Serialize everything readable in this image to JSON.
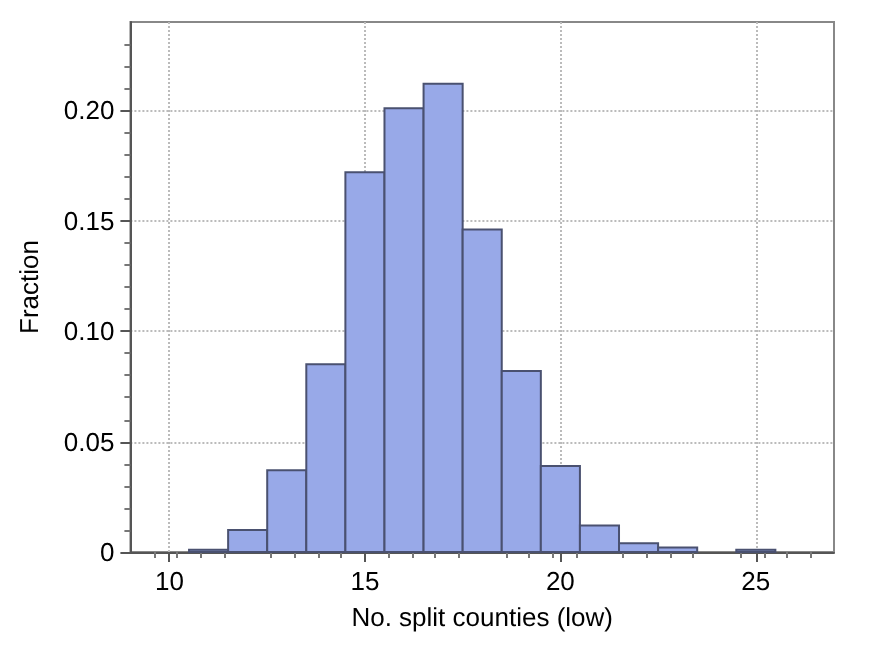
{
  "chart_data": {
    "type": "histogram",
    "xlabel": "No. split counties (low)",
    "ylabel": "Fraction",
    "bins": [
      10.5,
      11.5,
      12.5,
      13.5,
      14.5,
      15.5,
      16.5,
      17.5,
      18.5,
      19.5,
      20.5,
      21.5,
      22.5,
      23.5,
      24.5,
      25.5
    ],
    "values": [
      0.001,
      0.01,
      0.037,
      0.085,
      0.172,
      0.201,
      0.212,
      0.146,
      0.082,
      0.039,
      0.012,
      0.004,
      0.002,
      0,
      0.001
    ],
    "color": "#98a9e8",
    "xlim": [
      9,
      27
    ],
    "xticks": [
      10,
      15,
      20,
      25
    ],
    "ylim": [
      0,
      0.24
    ],
    "yticks": [
      {
        "value": 0,
        "label": "0"
      },
      {
        "value": 0.05,
        "label": "0.05"
      },
      {
        "value": 0.1,
        "label": "0.10"
      },
      {
        "value": 0.15,
        "label": "0.15"
      },
      {
        "value": 0.2,
        "label": "0.20"
      }
    ],
    "grid": true
  }
}
